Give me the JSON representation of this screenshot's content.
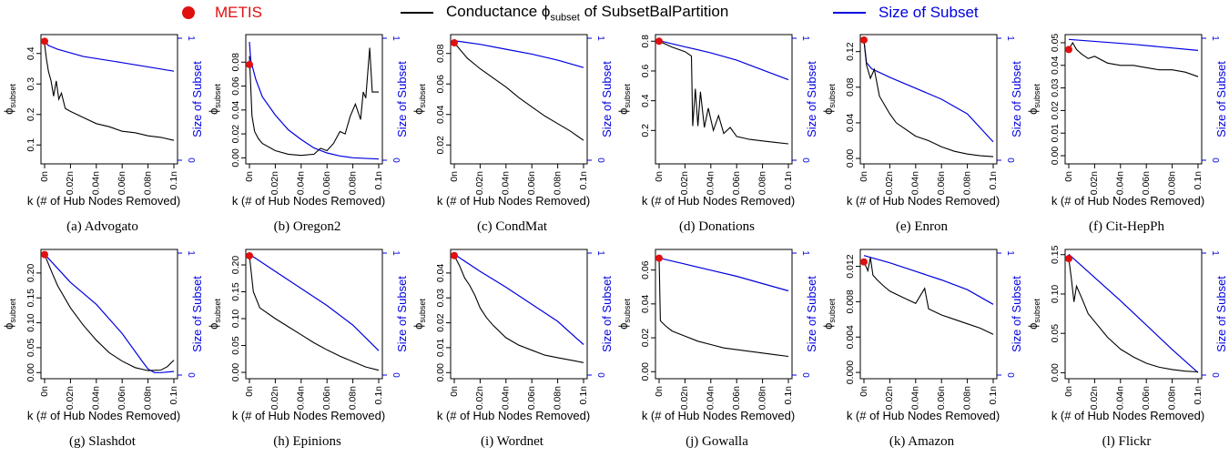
{
  "legend": {
    "metis": "METIS",
    "conductance_prefix": "Conductance ϕ",
    "conductance_sub": "subset",
    "conductance_suffix": " of SubsetBalPartition",
    "size": "Size of Subset",
    "colors": {
      "metis": "#e01010",
      "conductance": "#000000",
      "size": "#0000e0"
    }
  },
  "axis_labels": {
    "xlabel": "k (# of Hub Nodes Removed)",
    "ylabel_main": "ϕ",
    "ylabel_sub": "subset",
    "ylabel_right": "Size of Subset",
    "xticks": [
      "0n",
      "0.02n",
      "0.04n",
      "0.06n",
      "0.08n",
      "0.1n"
    ],
    "xtick_values": [
      0,
      0.02,
      0.04,
      0.06,
      0.08,
      0.1
    ],
    "right_ticks": [
      "0",
      "1"
    ],
    "right_tick_values": [
      0,
      1
    ]
  },
  "chart_data": [
    {
      "type": "line",
      "caption": "(a) Advogato",
      "ylim": [
        0.05,
        0.45
      ],
      "yticks": [
        0.1,
        0.2,
        0.3,
        0.4
      ],
      "yticklabels": [
        "0.1",
        "0.2",
        "0.3",
        "0.4"
      ],
      "metis": 0.44,
      "conductance": [
        [
          0,
          0.43
        ],
        [
          0.0015,
          0.38
        ],
        [
          0.003,
          0.34
        ],
        [
          0.005,
          0.31
        ],
        [
          0.007,
          0.26
        ],
        [
          0.009,
          0.31
        ],
        [
          0.011,
          0.25
        ],
        [
          0.013,
          0.27
        ],
        [
          0.016,
          0.22
        ],
        [
          0.02,
          0.21
        ],
        [
          0.025,
          0.2
        ],
        [
          0.03,
          0.19
        ],
        [
          0.04,
          0.17
        ],
        [
          0.05,
          0.16
        ],
        [
          0.06,
          0.145
        ],
        [
          0.07,
          0.14
        ],
        [
          0.08,
          0.13
        ],
        [
          0.09,
          0.125
        ],
        [
          0.1,
          0.115
        ]
      ],
      "size": [
        [
          0,
          0.97
        ],
        [
          0.003,
          0.94
        ],
        [
          0.01,
          0.91
        ],
        [
          0.03,
          0.85
        ],
        [
          0.06,
          0.8
        ],
        [
          0.1,
          0.73
        ]
      ]
    },
    {
      "type": "line",
      "caption": "(b) Oregon2",
      "ylim": [
        -0.002,
        0.1
      ],
      "yticks": [
        0,
        0.02,
        0.04,
        0.06,
        0.08
      ],
      "yticklabels": [
        "0.00",
        "0.02",
        "0.04",
        "0.06",
        "0.08"
      ],
      "metis": 0.078,
      "conductance": [
        [
          0,
          0.085
        ],
        [
          0.002,
          0.035
        ],
        [
          0.004,
          0.022
        ],
        [
          0.007,
          0.016
        ],
        [
          0.01,
          0.012
        ],
        [
          0.02,
          0.006
        ],
        [
          0.03,
          0.003
        ],
        [
          0.04,
          0.002
        ],
        [
          0.05,
          0.003
        ],
        [
          0.055,
          0.008
        ],
        [
          0.06,
          0.006
        ],
        [
          0.065,
          0.012
        ],
        [
          0.07,
          0.022
        ],
        [
          0.074,
          0.02
        ],
        [
          0.078,
          0.035
        ],
        [
          0.082,
          0.045
        ],
        [
          0.086,
          0.032
        ],
        [
          0.088,
          0.055
        ],
        [
          0.09,
          0.05
        ],
        [
          0.093,
          0.092
        ],
        [
          0.095,
          0.055
        ],
        [
          0.1,
          0.055
        ]
      ],
      "size": [
        [
          0,
          0.97
        ],
        [
          0.001,
          0.82
        ],
        [
          0.005,
          0.66
        ],
        [
          0.01,
          0.52
        ],
        [
          0.02,
          0.37
        ],
        [
          0.03,
          0.25
        ],
        [
          0.04,
          0.17
        ],
        [
          0.05,
          0.1
        ],
        [
          0.06,
          0.06
        ],
        [
          0.07,
          0.035
        ],
        [
          0.08,
          0.02
        ],
        [
          0.1,
          0.01
        ]
      ]
    },
    {
      "type": "line",
      "caption": "(c) CondMat",
      "ylim": [
        0.01,
        0.09
      ],
      "yticks": [
        0.02,
        0.04,
        0.06,
        0.08
      ],
      "yticklabels": [
        "0.02",
        "0.04",
        "0.06",
        "0.08"
      ],
      "metis": 0.087,
      "conductance": [
        [
          0,
          0.087
        ],
        [
          0.005,
          0.082
        ],
        [
          0.01,
          0.077
        ],
        [
          0.02,
          0.07
        ],
        [
          0.03,
          0.064
        ],
        [
          0.04,
          0.058
        ],
        [
          0.05,
          0.051
        ],
        [
          0.06,
          0.045
        ],
        [
          0.07,
          0.039
        ],
        [
          0.08,
          0.034
        ],
        [
          0.09,
          0.029
        ],
        [
          0.1,
          0.023
        ]
      ],
      "size": [
        [
          0,
          0.98
        ],
        [
          0.02,
          0.95
        ],
        [
          0.04,
          0.91
        ],
        [
          0.06,
          0.87
        ],
        [
          0.08,
          0.82
        ],
        [
          0.1,
          0.76
        ]
      ]
    },
    {
      "type": "line",
      "caption": "(d) Donations",
      "ylim": [
        0.0,
        0.82
      ],
      "yticks": [
        0.2,
        0.4,
        0.6,
        0.8
      ],
      "yticklabels": [
        "0.2",
        "0.4",
        "0.6",
        "0.8"
      ],
      "metis": 0.8,
      "conductance": [
        [
          0,
          0.8
        ],
        [
          0.01,
          0.76
        ],
        [
          0.02,
          0.73
        ],
        [
          0.025,
          0.7
        ],
        [
          0.026,
          0.23
        ],
        [
          0.028,
          0.48
        ],
        [
          0.03,
          0.23
        ],
        [
          0.032,
          0.46
        ],
        [
          0.035,
          0.22
        ],
        [
          0.038,
          0.35
        ],
        [
          0.042,
          0.2
        ],
        [
          0.046,
          0.3
        ],
        [
          0.05,
          0.18
        ],
        [
          0.055,
          0.22
        ],
        [
          0.06,
          0.16
        ],
        [
          0.07,
          0.14
        ],
        [
          0.08,
          0.13
        ],
        [
          0.09,
          0.12
        ],
        [
          0.1,
          0.11
        ]
      ],
      "size": [
        [
          0,
          0.98
        ],
        [
          0.02,
          0.93
        ],
        [
          0.04,
          0.88
        ],
        [
          0.06,
          0.82
        ],
        [
          0.08,
          0.74
        ],
        [
          0.1,
          0.66
        ]
      ]
    },
    {
      "type": "line",
      "caption": "(e) Enron",
      "ylim": [
        -0.002,
        0.135
      ],
      "yticks": [
        0,
        0.04,
        0.08,
        0.12
      ],
      "yticklabels": [
        "0.00",
        "0.04",
        "0.08",
        "0.12"
      ],
      "metis": 0.133,
      "conductance": [
        [
          0,
          0.133
        ],
        [
          0.002,
          0.105
        ],
        [
          0.005,
          0.09
        ],
        [
          0.008,
          0.1
        ],
        [
          0.012,
          0.07
        ],
        [
          0.016,
          0.06
        ],
        [
          0.02,
          0.05
        ],
        [
          0.025,
          0.04
        ],
        [
          0.03,
          0.035
        ],
        [
          0.04,
          0.025
        ],
        [
          0.05,
          0.02
        ],
        [
          0.06,
          0.013
        ],
        [
          0.07,
          0.008
        ],
        [
          0.08,
          0.005
        ],
        [
          0.09,
          0.003
        ],
        [
          0.1,
          0.002
        ]
      ],
      "size": [
        [
          0,
          0.98
        ],
        [
          0.002,
          0.8
        ],
        [
          0.006,
          0.75
        ],
        [
          0.02,
          0.68
        ],
        [
          0.04,
          0.59
        ],
        [
          0.06,
          0.5
        ],
        [
          0.08,
          0.38
        ],
        [
          0.1,
          0.15
        ]
      ]
    },
    {
      "type": "line",
      "caption": "(f) Cit-HepPh",
      "ylim": [
        -0.002,
        0.052
      ],
      "yticks": [
        0,
        0.01,
        0.02,
        0.03,
        0.04,
        0.05
      ],
      "yticklabels": [
        "0.00",
        "0.01",
        "0.02",
        "0.03",
        "0.04",
        "0.05"
      ],
      "metis": 0.047,
      "conductance": [
        [
          0,
          0.047
        ],
        [
          0.003,
          0.05
        ],
        [
          0.006,
          0.047
        ],
        [
          0.01,
          0.045
        ],
        [
          0.015,
          0.043
        ],
        [
          0.02,
          0.044
        ],
        [
          0.03,
          0.041
        ],
        [
          0.04,
          0.04
        ],
        [
          0.05,
          0.04
        ],
        [
          0.06,
          0.039
        ],
        [
          0.07,
          0.038
        ],
        [
          0.08,
          0.038
        ],
        [
          0.09,
          0.037
        ],
        [
          0.1,
          0.035
        ]
      ],
      "size": [
        [
          0,
          0.99
        ],
        [
          0.05,
          0.95
        ],
        [
          0.1,
          0.9
        ]
      ]
    },
    {
      "type": "line",
      "caption": "(g) Slashdot",
      "ylim": [
        -0.005,
        0.24
      ],
      "yticks": [
        0,
        0.05,
        0.1,
        0.15,
        0.2
      ],
      "yticklabels": [
        "0.00",
        "0.05",
        "0.10",
        "0.15",
        "0.20"
      ],
      "metis": 0.237,
      "conductance": [
        [
          0,
          0.237
        ],
        [
          0.005,
          0.205
        ],
        [
          0.01,
          0.175
        ],
        [
          0.02,
          0.13
        ],
        [
          0.03,
          0.095
        ],
        [
          0.04,
          0.065
        ],
        [
          0.05,
          0.04
        ],
        [
          0.06,
          0.023
        ],
        [
          0.07,
          0.01
        ],
        [
          0.08,
          0.004
        ],
        [
          0.09,
          0.005
        ],
        [
          0.095,
          0.012
        ],
        [
          0.1,
          0.025
        ]
      ],
      "size": [
        [
          0,
          0.99
        ],
        [
          0.02,
          0.76
        ],
        [
          0.04,
          0.58
        ],
        [
          0.06,
          0.34
        ],
        [
          0.075,
          0.12
        ],
        [
          0.08,
          0.05
        ],
        [
          0.085,
          0.02
        ],
        [
          0.09,
          0.02
        ],
        [
          0.1,
          0.03
        ]
      ]
    },
    {
      "type": "line",
      "caption": "(h) Epinions",
      "ylim": [
        -0.005,
        0.222
      ],
      "yticks": [
        0,
        0.05,
        0.1,
        0.15,
        0.2
      ],
      "yticklabels": [
        "0.00",
        "0.05",
        "0.10",
        "0.15",
        "0.20"
      ],
      "metis": 0.217,
      "conductance": [
        [
          0,
          0.217
        ],
        [
          0.003,
          0.15
        ],
        [
          0.008,
          0.12
        ],
        [
          0.02,
          0.1
        ],
        [
          0.03,
          0.085
        ],
        [
          0.04,
          0.07
        ],
        [
          0.05,
          0.055
        ],
        [
          0.06,
          0.042
        ],
        [
          0.07,
          0.03
        ],
        [
          0.08,
          0.02
        ],
        [
          0.09,
          0.01
        ],
        [
          0.1,
          0.004
        ]
      ],
      "size": [
        [
          0,
          0.99
        ],
        [
          0.02,
          0.85
        ],
        [
          0.04,
          0.71
        ],
        [
          0.06,
          0.57
        ],
        [
          0.08,
          0.41
        ],
        [
          0.1,
          0.2
        ]
      ]
    },
    {
      "type": "line",
      "caption": "(i) Wordnet",
      "ylim": [
        -0.001,
        0.048
      ],
      "yticks": [
        0,
        0.01,
        0.02,
        0.03,
        0.04
      ],
      "yticklabels": [
        "0.00",
        "0.01",
        "0.02",
        "0.03",
        "0.04"
      ],
      "metis": 0.047,
      "conductance": [
        [
          0,
          0.047
        ],
        [
          0.004,
          0.043
        ],
        [
          0.008,
          0.038
        ],
        [
          0.012,
          0.035
        ],
        [
          0.016,
          0.031
        ],
        [
          0.02,
          0.026
        ],
        [
          0.025,
          0.022
        ],
        [
          0.03,
          0.019
        ],
        [
          0.04,
          0.014
        ],
        [
          0.05,
          0.011
        ],
        [
          0.06,
          0.009
        ],
        [
          0.07,
          0.007
        ],
        [
          0.08,
          0.006
        ],
        [
          0.09,
          0.005
        ],
        [
          0.1,
          0.004
        ]
      ],
      "size": [
        [
          0,
          0.99
        ],
        [
          0.02,
          0.85
        ],
        [
          0.04,
          0.72
        ],
        [
          0.06,
          0.58
        ],
        [
          0.08,
          0.44
        ],
        [
          0.1,
          0.25
        ]
      ]
    },
    {
      "type": "line",
      "caption": "(j) Gowalla",
      "ylim": [
        -0.002,
        0.07
      ],
      "yticks": [
        0,
        0.02,
        0.04,
        0.06
      ],
      "yticklabels": [
        "0.00",
        "0.02",
        "0.04",
        "0.06"
      ],
      "metis": 0.067,
      "conductance": [
        [
          0,
          0.067
        ],
        [
          0.001,
          0.03
        ],
        [
          0.005,
          0.027
        ],
        [
          0.01,
          0.024
        ],
        [
          0.02,
          0.021
        ],
        [
          0.03,
          0.018
        ],
        [
          0.04,
          0.016
        ],
        [
          0.05,
          0.014
        ],
        [
          0.06,
          0.013
        ],
        [
          0.07,
          0.012
        ],
        [
          0.08,
          0.011
        ],
        [
          0.09,
          0.01
        ],
        [
          0.1,
          0.009
        ]
      ],
      "size": [
        [
          0,
          0.96
        ],
        [
          0.02,
          0.91
        ],
        [
          0.04,
          0.86
        ],
        [
          0.06,
          0.81
        ],
        [
          0.08,
          0.75
        ],
        [
          0.1,
          0.69
        ]
      ]
    },
    {
      "type": "line",
      "caption": "(k) Amazon",
      "ylim": [
        -0.0003,
        0.0135
      ],
      "yticks": [
        0,
        0.004,
        0.008,
        0.012
      ],
      "yticklabels": [
        "0.000",
        "0.004",
        "0.008",
        "0.012"
      ],
      "metis": 0.0125,
      "conductance": [
        [
          0,
          0.0125
        ],
        [
          0.003,
          0.0115
        ],
        [
          0.005,
          0.013
        ],
        [
          0.007,
          0.011
        ],
        [
          0.01,
          0.0105
        ],
        [
          0.015,
          0.0098
        ],
        [
          0.02,
          0.0092
        ],
        [
          0.03,
          0.0085
        ],
        [
          0.04,
          0.0078
        ],
        [
          0.047,
          0.0095
        ],
        [
          0.05,
          0.0072
        ],
        [
          0.06,
          0.0065
        ],
        [
          0.07,
          0.006
        ],
        [
          0.08,
          0.0055
        ],
        [
          0.09,
          0.005
        ],
        [
          0.1,
          0.0043
        ]
      ],
      "size": [
        [
          0,
          0.98
        ],
        [
          0.02,
          0.92
        ],
        [
          0.04,
          0.85
        ],
        [
          0.06,
          0.78
        ],
        [
          0.08,
          0.7
        ],
        [
          0.1,
          0.58
        ]
      ]
    },
    {
      "type": "line",
      "caption": "(l) Flickr",
      "ylim": [
        -0.003,
        0.152
      ],
      "yticks": [
        0,
        0.05,
        0.1,
        0.15
      ],
      "yticklabels": [
        "0.00",
        "0.05",
        "0.10",
        "0.15"
      ],
      "metis": 0.145,
      "conductance": [
        [
          0,
          0.145
        ],
        [
          0.002,
          0.12
        ],
        [
          0.004,
          0.09
        ],
        [
          0.006,
          0.11
        ],
        [
          0.01,
          0.095
        ],
        [
          0.015,
          0.075
        ],
        [
          0.02,
          0.065
        ],
        [
          0.03,
          0.045
        ],
        [
          0.04,
          0.03
        ],
        [
          0.05,
          0.02
        ],
        [
          0.06,
          0.012
        ],
        [
          0.07,
          0.007
        ],
        [
          0.08,
          0.004
        ],
        [
          0.09,
          0.002
        ],
        [
          0.1,
          0.001
        ]
      ],
      "size": [
        [
          0,
          0.99
        ],
        [
          0.02,
          0.8
        ],
        [
          0.04,
          0.61
        ],
        [
          0.06,
          0.41
        ],
        [
          0.08,
          0.21
        ],
        [
          0.1,
          0.02
        ]
      ]
    }
  ]
}
